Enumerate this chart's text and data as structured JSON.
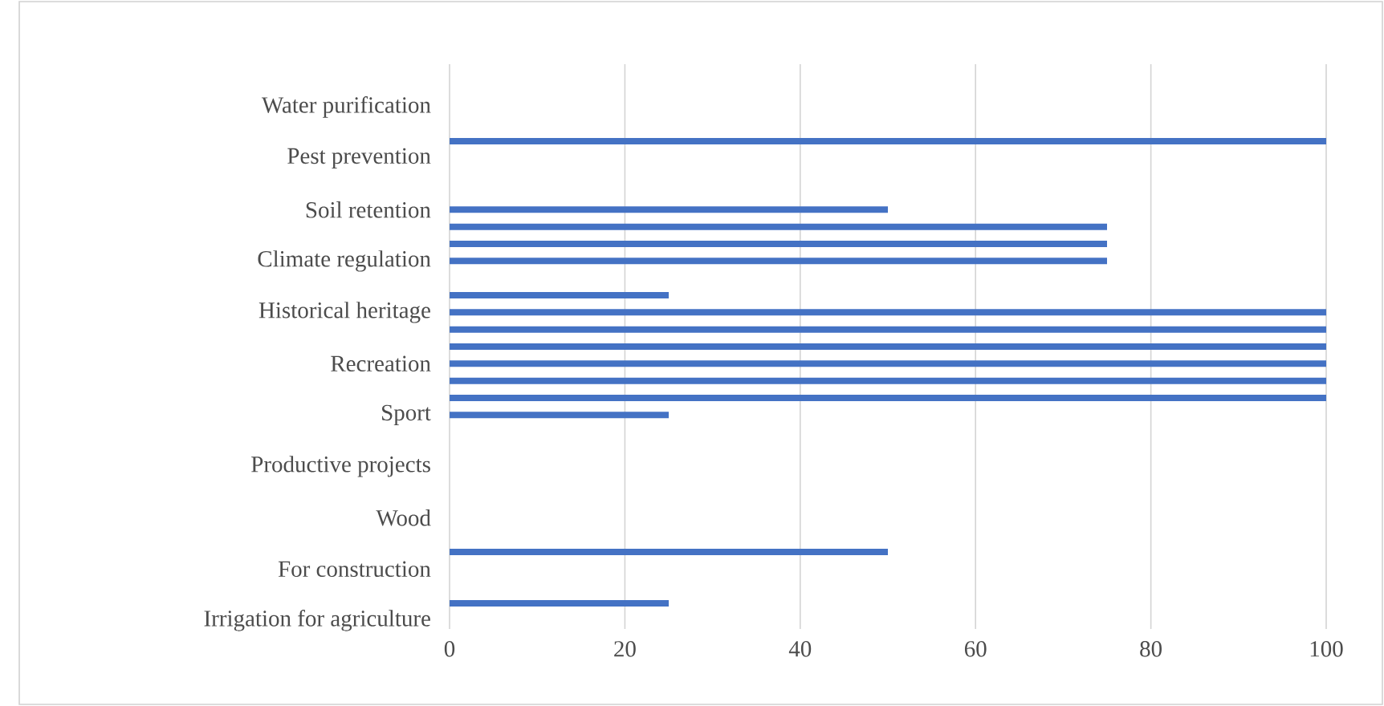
{
  "chart_data": {
    "type": "bar",
    "orientation": "horizontal",
    "categories": [
      null,
      null,
      "Water purification",
      null,
      null,
      "Pest prevention",
      null,
      null,
      "Soil retention",
      null,
      null,
      "Climate regulation",
      null,
      null,
      "Historical heritage",
      null,
      null,
      "Recreation",
      null,
      null,
      "Sport",
      null,
      null,
      "Productive projects",
      null,
      null,
      "Wood",
      null,
      null,
      "For construction",
      null,
      null,
      "Irrigation for agriculture"
    ],
    "values": [
      0,
      0,
      0,
      0,
      100,
      0,
      0,
      0,
      50,
      75,
      75,
      75,
      0,
      25,
      100,
      100,
      100,
      100,
      100,
      100,
      25,
      0,
      0,
      0,
      0,
      0,
      0,
      0,
      50,
      0,
      0,
      25,
      0
    ],
    "color": "#4472c4",
    "xlim": [
      0,
      100
    ],
    "xticks": [
      0,
      20,
      40,
      60,
      80,
      100
    ],
    "grid": "x"
  }
}
